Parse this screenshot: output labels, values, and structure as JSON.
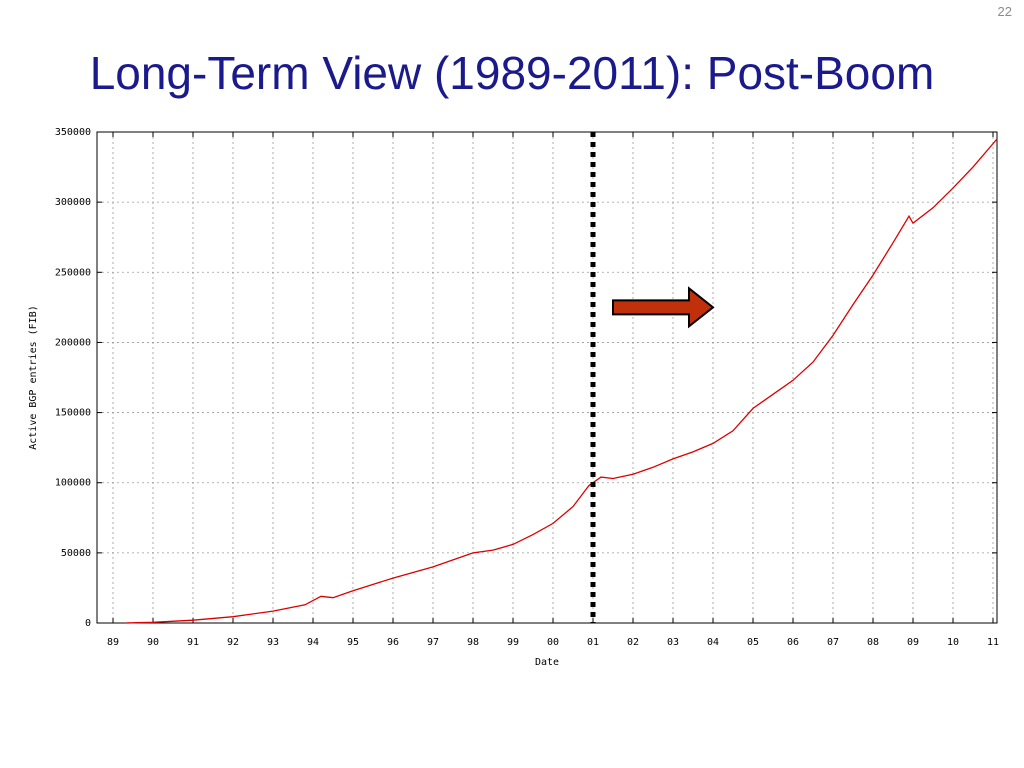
{
  "slide": {
    "number": "22",
    "title": "Long-Term View (1989-2011): Post-Boom"
  },
  "chart_data": {
    "type": "line",
    "title": "",
    "xlabel": "Date",
    "ylabel": "Active BGP entries (FIB)",
    "x_ticks": [
      "89",
      "90",
      "91",
      "92",
      "93",
      "94",
      "95",
      "96",
      "97",
      "98",
      "99",
      "00",
      "01",
      "02",
      "03",
      "04",
      "05",
      "06",
      "07",
      "08",
      "09",
      "10",
      "11"
    ],
    "x_tick_years": [
      1989,
      1990,
      1991,
      1992,
      1993,
      1994,
      1995,
      1996,
      1997,
      1998,
      1999,
      2000,
      2001,
      2002,
      2003,
      2004,
      2005,
      2006,
      2007,
      2008,
      2009,
      2010,
      2011
    ],
    "xlim": [
      1988.6,
      2011.1
    ],
    "ylim": [
      0,
      350000
    ],
    "y_ticks": [
      0,
      50000,
      100000,
      150000,
      200000,
      250000,
      300000,
      350000
    ],
    "grid": true,
    "series_color": "#dd0000",
    "series": [
      {
        "values": [
          [
            1989.3,
            0
          ],
          [
            1990.0,
            500
          ],
          [
            1991.0,
            2000
          ],
          [
            1992.0,
            4500
          ],
          [
            1993.0,
            8500
          ],
          [
            1993.8,
            13000
          ],
          [
            1994.2,
            19000
          ],
          [
            1994.5,
            18000
          ],
          [
            1995.0,
            23000
          ],
          [
            1996.0,
            32000
          ],
          [
            1997.0,
            40000
          ],
          [
            1997.5,
            45000
          ],
          [
            1998.0,
            50000
          ],
          [
            1998.5,
            52000
          ],
          [
            1999.0,
            56000
          ],
          [
            1999.5,
            63000
          ],
          [
            2000.0,
            71000
          ],
          [
            2000.5,
            83000
          ],
          [
            2000.9,
            98000
          ],
          [
            2001.2,
            104000
          ],
          [
            2001.5,
            103000
          ],
          [
            2002.0,
            106000
          ],
          [
            2002.5,
            111000
          ],
          [
            2003.0,
            117000
          ],
          [
            2003.5,
            122000
          ],
          [
            2004.0,
            128000
          ],
          [
            2004.5,
            137000
          ],
          [
            2005.0,
            153000
          ],
          [
            2005.5,
            163000
          ],
          [
            2006.0,
            173000
          ],
          [
            2006.5,
            186000
          ],
          [
            2007.0,
            205000
          ],
          [
            2007.5,
            227000
          ],
          [
            2008.0,
            248000
          ],
          [
            2008.5,
            271000
          ],
          [
            2008.9,
            290000
          ],
          [
            2009.0,
            285000
          ],
          [
            2009.5,
            296000
          ],
          [
            2010.0,
            310000
          ],
          [
            2010.5,
            325000
          ],
          [
            2011.1,
            345000
          ]
        ]
      }
    ],
    "annotations": [
      {
        "type": "vertical-dotted-line",
        "x": 2001.0,
        "color": "#000000"
      },
      {
        "type": "arrow",
        "direction": "right",
        "fill": "#c0300a",
        "at_x": [
          2001.5,
          2004.0
        ],
        "at_y": 225000
      }
    ]
  }
}
